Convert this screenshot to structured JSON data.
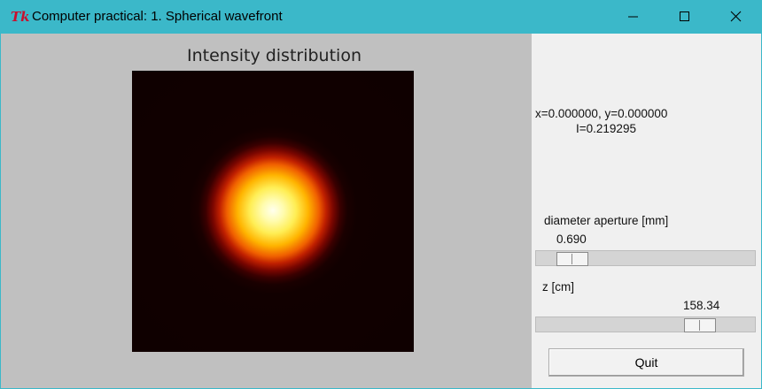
{
  "window": {
    "icon_text": "Tk",
    "title": "Computer practical: 1. Spherical wavefront"
  },
  "plot": {
    "title": "Intensity distribution"
  },
  "readout": {
    "coords": "x=0.000000, y=0.000000",
    "intensity": "I=0.219295"
  },
  "controls": {
    "diameter": {
      "label": "diameter aperture [mm]",
      "value": "0.690",
      "fraction": 0.11
    },
    "z": {
      "label": "z [cm]",
      "value": "158.34",
      "fraction": 0.79
    },
    "quit_label": "Quit"
  },
  "colors": {
    "titlebar": "#3bb8c9",
    "plot_background": "#c0c0c0",
    "panel_background": "#f0f0f0"
  }
}
